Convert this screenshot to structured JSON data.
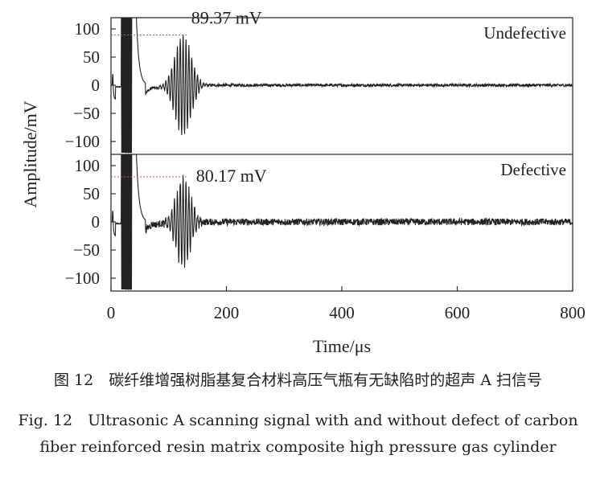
{
  "chart_data": {
    "type": "line",
    "xlabel": "Time/μs",
    "ylabel": "Amplitude/mV",
    "xlim": [
      0,
      800
    ],
    "xticks": [
      0,
      200,
      400,
      600,
      800
    ],
    "ylim": [
      -120,
      120
    ],
    "yticks": [
      100,
      50,
      0,
      -50,
      -100
    ],
    "grid": false,
    "panels": [
      {
        "name": "Undefective",
        "annotation": "89.37 mV",
        "peak_value": 89.37,
        "peak_time": 125,
        "noise_level": 2.5,
        "envelope": {
          "center": 125,
          "width": 20,
          "carrier_period": 5
        }
      },
      {
        "name": "Defective",
        "annotation": "80.17 mV",
        "peak_value": 80.17,
        "peak_time": 125,
        "noise_level": 6,
        "envelope": {
          "center": 125,
          "width": 18,
          "carrier_period": 5
        }
      }
    ]
  },
  "caption": {
    "cn": "图 12　碳纤维增强树脂基复合材料高压气瓶有无缺陷时的超声 A 扫信号",
    "en_line1": "Fig. 12　Ultrasonic A scanning signal with and without defect of carbon",
    "en_line2": "fiber reinforced resin matrix composite high pressure gas cylinder"
  },
  "colors": {
    "signal": "#222222",
    "reference_line": "#e05050"
  }
}
